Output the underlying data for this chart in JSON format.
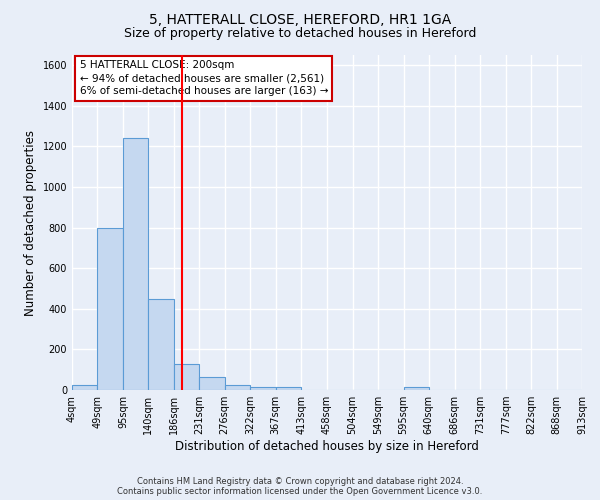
{
  "title": "5, HATTERALL CLOSE, HEREFORD, HR1 1GA",
  "subtitle": "Size of property relative to detached houses in Hereford",
  "xlabel": "Distribution of detached houses by size in Hereford",
  "ylabel": "Number of detached properties",
  "bin_edges": [
    4,
    49,
    95,
    140,
    186,
    231,
    276,
    322,
    367,
    413,
    458,
    504,
    549,
    595,
    640,
    686,
    731,
    777,
    822,
    868,
    913
  ],
  "bar_heights": [
    25,
    800,
    1240,
    450,
    130,
    65,
    25,
    15,
    15,
    0,
    0,
    0,
    0,
    15,
    0,
    0,
    0,
    0,
    0,
    0
  ],
  "bar_color": "#c5d8f0",
  "bar_edgecolor": "#5b9bd5",
  "bar_linewidth": 0.8,
  "bg_color": "#e8eef8",
  "grid_color": "#ffffff",
  "red_line_x": 200,
  "ylim": [
    0,
    1650
  ],
  "yticks": [
    0,
    200,
    400,
    600,
    800,
    1000,
    1200,
    1400,
    1600
  ],
  "annotation_text": "5 HATTERALL CLOSE: 200sqm\n← 94% of detached houses are smaller (2,561)\n6% of semi-detached houses are larger (163) →",
  "annotation_box_color": "#ffffff",
  "annotation_box_edgecolor": "#cc0000",
  "footer_line1": "Contains HM Land Registry data © Crown copyright and database right 2024.",
  "footer_line2": "Contains public sector information licensed under the Open Government Licence v3.0.",
  "title_fontsize": 10,
  "subtitle_fontsize": 9,
  "tick_fontsize": 7,
  "ylabel_fontsize": 8.5,
  "xlabel_fontsize": 8.5,
  "annotation_fontsize": 7.5,
  "footer_fontsize": 6
}
